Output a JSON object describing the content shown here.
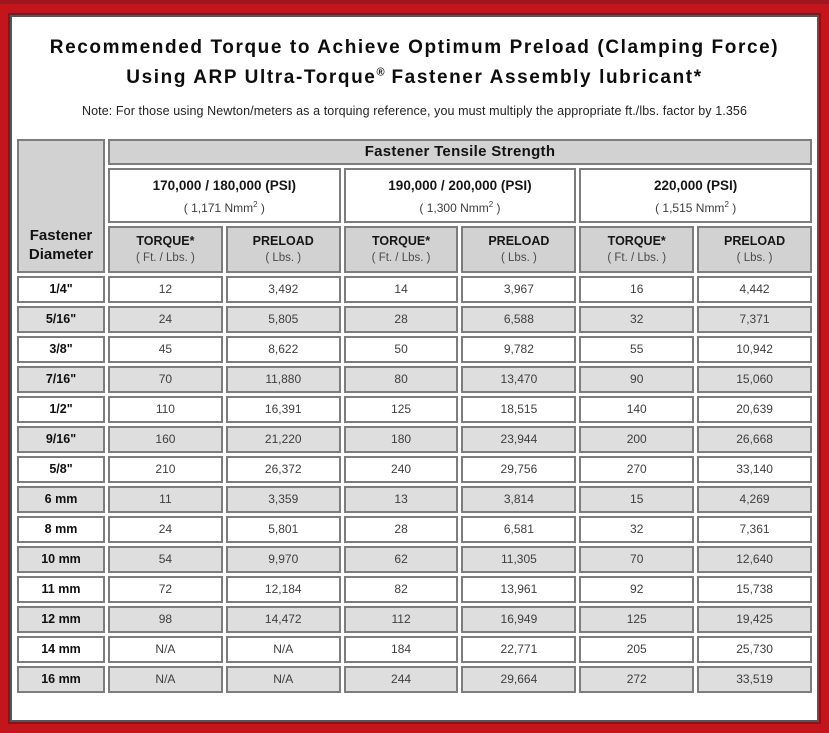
{
  "title": {
    "line1": "Recommended Torque to Achieve Optimum Preload (Clamping Force)",
    "line2_pre": "Using ARP Ultra-Torque",
    "line2_sup": "®",
    "line2_post": " Fastener Assembly lubricant*",
    "note": "Note: For those using Newton/meters as a torquing reference, you must multiply the appropriate ft./lbs. factor by 1.356"
  },
  "colors": {
    "frame_red": "#c4151c",
    "frame_red_dark": "#8e1118",
    "header_gray": "#d2d2d2",
    "row_gray": "#dedede",
    "cell_border": "#7d7d7f"
  },
  "table": {
    "corner_header_line1": "Fastener",
    "corner_header_line2": "Diameter",
    "group_header": "Fastener Tensile Strength",
    "strength_groups": [
      {
        "psi": "170,000 / 180,000 (PSI)",
        "nmm_pre": "( 1,171 Nmm",
        "nmm_sup": "2",
        "nmm_post": " )"
      },
      {
        "psi": "190,000 / 200,000 (PSI)",
        "nmm_pre": "( 1,300 Nmm",
        "nmm_sup": "2",
        "nmm_post": " )"
      },
      {
        "psi": "220,000 (PSI)",
        "nmm_pre": "( 1,515 Nmm",
        "nmm_sup": "2",
        "nmm_post": " )"
      }
    ],
    "sub_headers": {
      "torque_label": "TORQUE*",
      "torque_unit": "( Ft. / Lbs. )",
      "preload_label": "PRELOAD",
      "preload_unit": "( Lbs. )"
    },
    "rows": [
      {
        "diameter": "1/4\"",
        "values": [
          "12",
          "3,492",
          "14",
          "3,967",
          "16",
          "4,442"
        ]
      },
      {
        "diameter": "5/16\"",
        "values": [
          "24",
          "5,805",
          "28",
          "6,588",
          "32",
          "7,371"
        ]
      },
      {
        "diameter": "3/8\"",
        "values": [
          "45",
          "8,622",
          "50",
          "9,782",
          "55",
          "10,942"
        ]
      },
      {
        "diameter": "7/16\"",
        "values": [
          "70",
          "11,880",
          "80",
          "13,470",
          "90",
          "15,060"
        ]
      },
      {
        "diameter": "1/2\"",
        "values": [
          "110",
          "16,391",
          "125",
          "18,515",
          "140",
          "20,639"
        ]
      },
      {
        "diameter": "9/16\"",
        "values": [
          "160",
          "21,220",
          "180",
          "23,944",
          "200",
          "26,668"
        ]
      },
      {
        "diameter": "5/8\"",
        "values": [
          "210",
          "26,372",
          "240",
          "29,756",
          "270",
          "33,140"
        ]
      },
      {
        "diameter": "6 mm",
        "values": [
          "11",
          "3,359",
          "13",
          "3,814",
          "15",
          "4,269"
        ]
      },
      {
        "diameter": "8 mm",
        "values": [
          "24",
          "5,801",
          "28",
          "6,581",
          "32",
          "7,361"
        ]
      },
      {
        "diameter": "10 mm",
        "values": [
          "54",
          "9,970",
          "62",
          "11,305",
          "70",
          "12,640"
        ]
      },
      {
        "diameter": "11 mm",
        "values": [
          "72",
          "12,184",
          "82",
          "13,961",
          "92",
          "15,738"
        ]
      },
      {
        "diameter": "12 mm",
        "values": [
          "98",
          "14,472",
          "112",
          "16,949",
          "125",
          "19,425"
        ]
      },
      {
        "diameter": "14 mm",
        "values": [
          "N/A",
          "N/A",
          "184",
          "22,771",
          "205",
          "25,730"
        ]
      },
      {
        "diameter": "16 mm",
        "values": [
          "N/A",
          "N/A",
          "244",
          "29,664",
          "272",
          "33,519"
        ]
      }
    ]
  }
}
